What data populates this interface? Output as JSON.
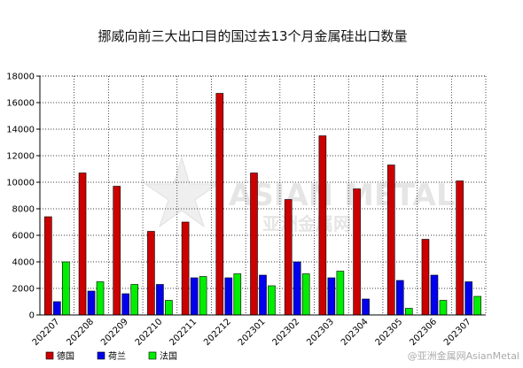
{
  "chart_data": {
    "type": "bar",
    "title": "挪威向前三大出口目的国过去13个月金属硅出口数量",
    "categories": [
      "202207",
      "202208",
      "202209",
      "202210",
      "202211",
      "202212",
      "202301",
      "202302",
      "202303",
      "202304",
      "202305",
      "202306",
      "202307"
    ],
    "series": [
      {
        "name": "德国",
        "color": "#cc0000",
        "values": [
          7400,
          10700,
          9700,
          6300,
          7000,
          16700,
          10700,
          8700,
          13500,
          9500,
          11300,
          5700,
          10100
        ]
      },
      {
        "name": "荷兰",
        "color": "#0000ee",
        "values": [
          1000,
          1800,
          1600,
          2300,
          2800,
          2800,
          3000,
          4000,
          2800,
          1200,
          2600,
          3000,
          2500
        ]
      },
      {
        "name": "法国",
        "color": "#00ee00",
        "values": [
          4000,
          2500,
          2300,
          1100,
          2900,
          3100,
          2200,
          3100,
          3300,
          0,
          500,
          1100,
          1400
        ]
      }
    ],
    "ylim": [
      0,
      18000
    ],
    "yticks": [
      "0",
      "2000",
      "4000",
      "6000",
      "8000",
      "10000",
      "12000",
      "14000",
      "16000",
      "18000"
    ],
    "grid": true,
    "legend_position": "bottom-left"
  },
  "watermark": {
    "main": "ASIAN METAL",
    "cn": "亚洲金属网",
    "credit": "@亚洲金属网AsianMetal"
  }
}
